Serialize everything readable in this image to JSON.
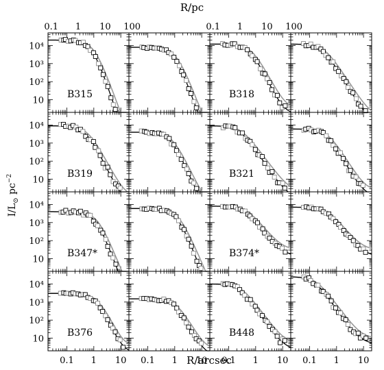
{
  "figure": {
    "top_axis_label": "R/pc",
    "bottom_axis_label": "R/arcsec",
    "left_axis_label_main": "I/L",
    "left_axis_label_sub": "⊙",
    "left_axis_label_tail": " pc",
    "left_axis_label_exp": "−2"
  },
  "chart_data": {
    "type": "scatter",
    "xscale": "log",
    "yscale": "log",
    "xlim_arcsec": [
      0.02,
      20
    ],
    "ylim": [
      2,
      50000
    ],
    "top_ticks": [
      "0.1",
      "1",
      "10",
      "100"
    ],
    "bottom_ticks": [
      "0.1",
      "1",
      "10"
    ],
    "y_ticks": [
      "10",
      "10²",
      "10³",
      "10⁴"
    ],
    "grid": false,
    "panels": [
      {
        "row": 0,
        "col": 0,
        "label": "B315",
        "plateau": 20000,
        "rc": 0.9,
        "slope": 4.5,
        "halo": 0,
        "noise": 0.1
      },
      {
        "row": 0,
        "col": 1,
        "label": "",
        "plateau": 8000,
        "rc": 1.0,
        "slope": 4.2,
        "halo": 0,
        "noise": 0.1
      },
      {
        "row": 0,
        "col": 2,
        "label": "B318",
        "plateau": 12000,
        "rc": 0.6,
        "slope": 3.0,
        "halo": 15,
        "noise": 0.15
      },
      {
        "row": 0,
        "col": 3,
        "label": "",
        "plateau": 12000,
        "rc": 0.3,
        "slope": 2.5,
        "halo": 5,
        "noise": 0.15
      },
      {
        "row": 1,
        "col": 0,
        "label": "B319",
        "plateau": 9000,
        "rc": 0.5,
        "slope": 3.0,
        "halo": 5,
        "noise": 0.2
      },
      {
        "row": 1,
        "col": 1,
        "label": "",
        "plateau": 4000,
        "rc": 0.7,
        "slope": 3.4,
        "halo": 2,
        "noise": 0.15
      },
      {
        "row": 1,
        "col": 2,
        "label": "B321",
        "plateau": 9000,
        "rc": 0.25,
        "slope": 2.2,
        "halo": 8,
        "noise": 0.2
      },
      {
        "row": 1,
        "col": 3,
        "label": "",
        "plateau": 6000,
        "rc": 0.4,
        "slope": 2.6,
        "halo": 10,
        "noise": 0.18
      },
      {
        "row": 2,
        "col": 0,
        "label": "B347*",
        "plateau": 4000,
        "rc": 1.2,
        "slope": 4.0,
        "halo": 0,
        "noise": 0.15
      },
      {
        "row": 2,
        "col": 1,
        "label": "",
        "plateau": 6000,
        "rc": 1.2,
        "slope": 3.8,
        "halo": 0,
        "noise": 0.1
      },
      {
        "row": 2,
        "col": 2,
        "label": "B374*",
        "plateau": 8000,
        "rc": 0.4,
        "slope": 2.0,
        "halo": 120,
        "noise": 0.08
      },
      {
        "row": 2,
        "col": 3,
        "label": "",
        "plateau": 7000,
        "rc": 0.4,
        "slope": 2.0,
        "halo": 120,
        "noise": 0.08
      },
      {
        "row": 3,
        "col": 0,
        "label": "B376",
        "plateau": 3000,
        "rc": 1.2,
        "slope": 3.2,
        "halo": 15,
        "noise": 0.12
      },
      {
        "row": 3,
        "col": 1,
        "label": "",
        "plateau": 1500,
        "rc": 1.0,
        "slope": 2.8,
        "halo": 10,
        "noise": 0.12
      },
      {
        "row": 3,
        "col": 2,
        "label": "B448",
        "plateau": 10000,
        "rc": 0.25,
        "slope": 2.2,
        "halo": 20,
        "noise": 0.2
      },
      {
        "row": 3,
        "col": 3,
        "label": "",
        "plateau": 25000,
        "rc": 0.15,
        "slope": 2.2,
        "halo": 40,
        "noise": 0.2
      }
    ]
  }
}
